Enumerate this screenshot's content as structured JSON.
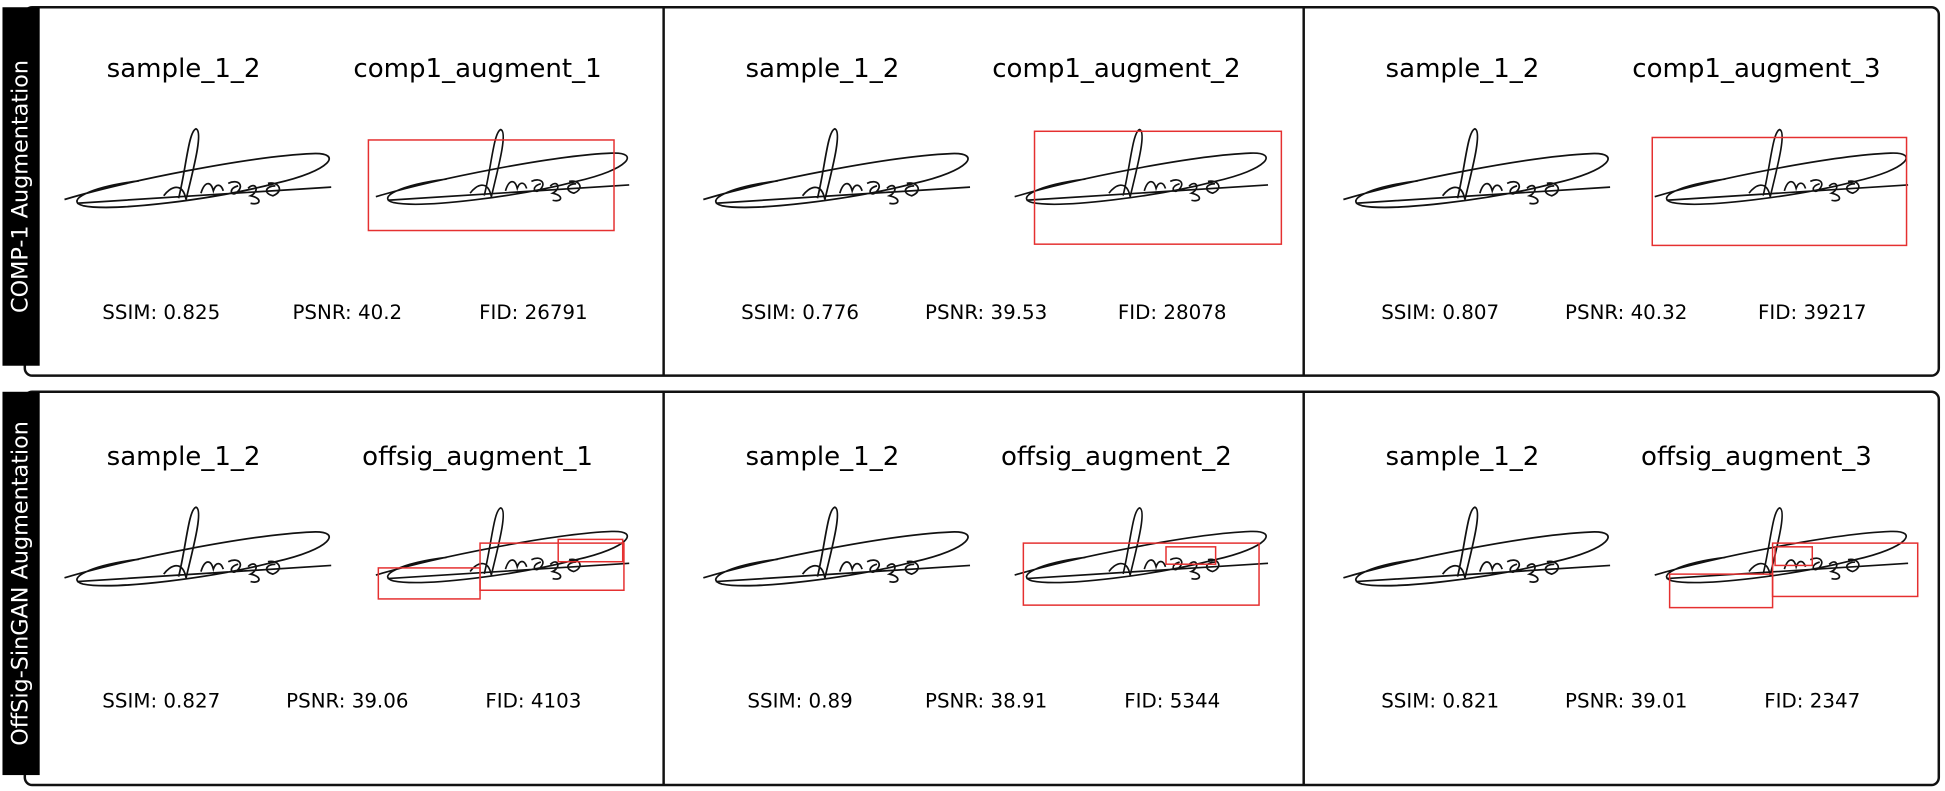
{
  "rows": [
    {
      "label": "COMP-1 Augmentation",
      "panels": [
        {
          "left_title": "sample_1_2",
          "right_title": "comp1_augment_1",
          "ssim": "SSIM: 0.825",
          "psnr": "PSNR: 40.2",
          "fid": "FID: 26791"
        },
        {
          "left_title": "sample_1_2",
          "right_title": "comp1_augment_2",
          "ssim": "SSIM: 0.776",
          "psnr": "PSNR: 39.53",
          "fid": "FID: 28078"
        },
        {
          "left_title": "sample_1_2",
          "right_title": "comp1_augment_3",
          "ssim": "SSIM: 0.807",
          "psnr": "PSNR: 40.32",
          "fid": "FID: 39217"
        }
      ]
    },
    {
      "label": "OffSig-SinGAN Augmentation",
      "panels": [
        {
          "left_title": "sample_1_2",
          "right_title": "offsig_augment_1",
          "ssim": "SSIM: 0.827",
          "psnr": "PSNR: 39.06",
          "fid": "FID: 4103"
        },
        {
          "left_title": "sample_1_2",
          "right_title": "offsig_augment_2",
          "ssim": "SSIM: 0.89",
          "psnr": "PSNR: 38.91",
          "fid": "FID: 5344"
        },
        {
          "left_title": "sample_1_2",
          "right_title": "offsig_augment_3",
          "ssim": "SSIM: 0.821",
          "psnr": "PSNR: 39.01",
          "fid": "FID: 2347"
        }
      ]
    }
  ]
}
